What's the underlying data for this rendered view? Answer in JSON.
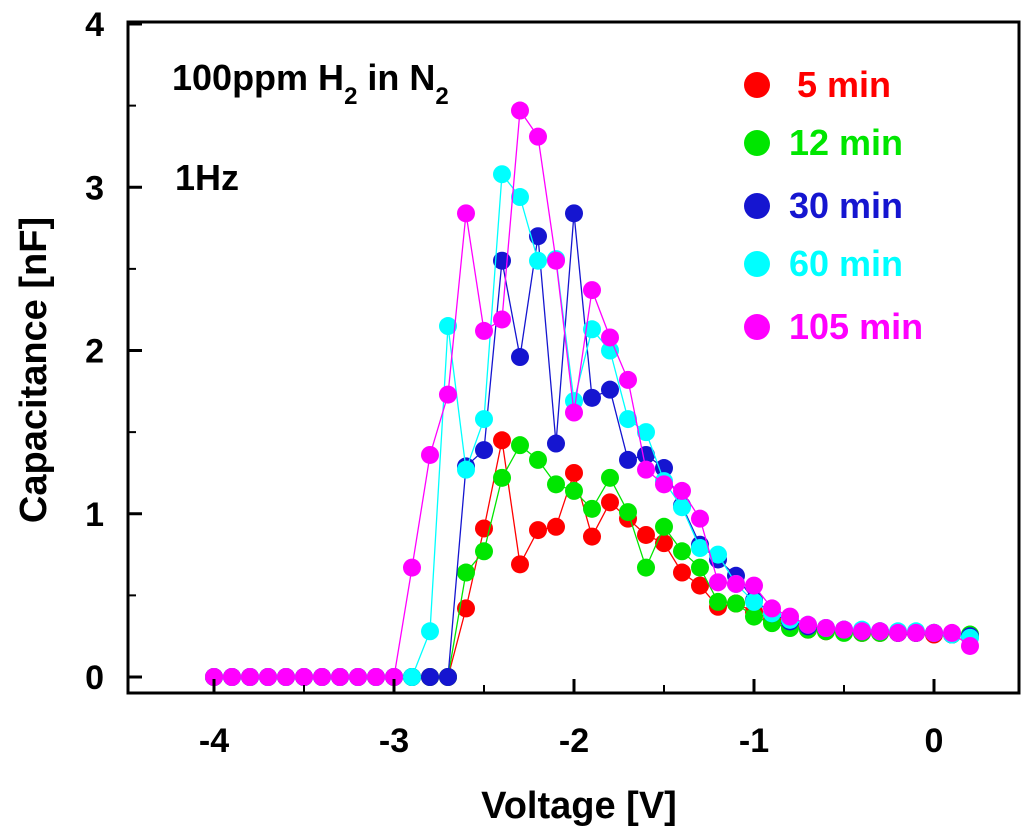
{
  "chart_data": {
    "type": "scatter",
    "xlabel": "Voltage [V]",
    "ylabel": "Capacitance [nF]",
    "xlim": [
      -4.5,
      0.5
    ],
    "ylim": [
      0,
      4
    ],
    "x_ticks": [
      -4,
      -3,
      -2,
      -1,
      0
    ],
    "x_tick_labels": [
      "-4",
      "-3",
      "-2",
      "-1",
      "0"
    ],
    "y_ticks": [
      0,
      1,
      2,
      3,
      4
    ],
    "y_tick_labels": [
      "0",
      "1",
      "2",
      "3",
      "4"
    ],
    "grid": false,
    "legend_position": "top-right",
    "annotations": {
      "gas_main": "100ppm H",
      "gas_sub1": "2",
      "gas_mid": " in N",
      "gas_sub2": "2",
      "freq": "1Hz"
    },
    "series": [
      {
        "name": "5 min",
        "color": "#ff0000",
        "points": [
          [
            -4.0,
            0.0
          ],
          [
            -3.9,
            0.0
          ],
          [
            -3.8,
            0.0
          ],
          [
            -3.7,
            0.0
          ],
          [
            -3.6,
            0.0
          ],
          [
            -3.5,
            0.0
          ],
          [
            -3.4,
            0.0
          ],
          [
            -3.3,
            0.0
          ],
          [
            -3.2,
            0.0
          ],
          [
            -3.1,
            0.0
          ],
          [
            -3.0,
            0.0
          ],
          [
            -2.9,
            0.0
          ],
          [
            -2.8,
            0.0
          ],
          [
            -2.7,
            0.0
          ],
          [
            -2.6,
            0.42
          ],
          [
            -2.5,
            0.91
          ],
          [
            -2.4,
            1.45
          ],
          [
            -2.3,
            0.69
          ],
          [
            -2.2,
            0.9
          ],
          [
            -2.1,
            0.92
          ],
          [
            -2.0,
            1.25
          ],
          [
            -1.9,
            0.86
          ],
          [
            -1.8,
            1.07
          ],
          [
            -1.7,
            0.97
          ],
          [
            -1.6,
            0.87
          ],
          [
            -1.5,
            0.82
          ],
          [
            -1.4,
            0.64
          ],
          [
            -1.3,
            0.56
          ],
          [
            -1.2,
            0.43
          ],
          [
            -1.1,
            0.45
          ],
          [
            -1.0,
            0.4
          ],
          [
            -0.9,
            0.35
          ],
          [
            -0.8,
            0.31
          ],
          [
            -0.7,
            0.29
          ],
          [
            -0.6,
            0.28
          ],
          [
            -0.5,
            0.28
          ],
          [
            -0.4,
            0.27
          ],
          [
            -0.3,
            0.27
          ],
          [
            -0.2,
            0.27
          ],
          [
            -0.1,
            0.27
          ],
          [
            0.0,
            0.26
          ],
          [
            0.1,
            0.26
          ],
          [
            0.2,
            0.25
          ]
        ]
      },
      {
        "name": "12 min",
        "color": "#00e600",
        "points": [
          [
            -4.0,
            0.0
          ],
          [
            -3.9,
            0.0
          ],
          [
            -3.8,
            0.0
          ],
          [
            -3.7,
            0.0
          ],
          [
            -3.6,
            0.0
          ],
          [
            -3.5,
            0.0
          ],
          [
            -3.4,
            0.0
          ],
          [
            -3.3,
            0.0
          ],
          [
            -3.2,
            0.0
          ],
          [
            -3.1,
            0.0
          ],
          [
            -3.0,
            0.0
          ],
          [
            -2.9,
            0.0
          ],
          [
            -2.8,
            0.0
          ],
          [
            -2.7,
            0.0
          ],
          [
            -2.6,
            0.64
          ],
          [
            -2.5,
            0.77
          ],
          [
            -2.4,
            1.22
          ],
          [
            -2.3,
            1.42
          ],
          [
            -2.2,
            1.33
          ],
          [
            -2.1,
            1.18
          ],
          [
            -2.0,
            1.14
          ],
          [
            -1.9,
            1.03
          ],
          [
            -1.8,
            1.22
          ],
          [
            -1.7,
            1.01
          ],
          [
            -1.6,
            0.67
          ],
          [
            -1.5,
            0.92
          ],
          [
            -1.4,
            0.77
          ],
          [
            -1.3,
            0.67
          ],
          [
            -1.2,
            0.46
          ],
          [
            -1.1,
            0.45
          ],
          [
            -1.0,
            0.37
          ],
          [
            -0.9,
            0.33
          ],
          [
            -0.8,
            0.3
          ],
          [
            -0.7,
            0.29
          ],
          [
            -0.6,
            0.28
          ],
          [
            -0.5,
            0.27
          ],
          [
            -0.4,
            0.27
          ],
          [
            -0.3,
            0.27
          ],
          [
            -0.2,
            0.27
          ],
          [
            -0.1,
            0.27
          ],
          [
            0.0,
            0.27
          ],
          [
            0.1,
            0.26
          ],
          [
            0.2,
            0.26
          ]
        ]
      },
      {
        "name": "30 min",
        "color": "#1515d0",
        "points": [
          [
            -4.0,
            0.0
          ],
          [
            -3.9,
            0.0
          ],
          [
            -3.8,
            0.0
          ],
          [
            -3.7,
            0.0
          ],
          [
            -3.6,
            0.0
          ],
          [
            -3.5,
            0.0
          ],
          [
            -3.4,
            0.0
          ],
          [
            -3.3,
            0.0
          ],
          [
            -3.2,
            0.0
          ],
          [
            -3.1,
            0.0
          ],
          [
            -3.0,
            0.0
          ],
          [
            -2.9,
            0.0
          ],
          [
            -2.8,
            0.0
          ],
          [
            -2.7,
            0.0
          ],
          [
            -2.6,
            1.29
          ],
          [
            -2.5,
            1.39
          ],
          [
            -2.4,
            2.55
          ],
          [
            -2.3,
            1.96
          ],
          [
            -2.2,
            2.7
          ],
          [
            -2.1,
            1.43
          ],
          [
            -2.0,
            2.84
          ],
          [
            -1.9,
            1.71
          ],
          [
            -1.8,
            1.76
          ],
          [
            -1.7,
            1.33
          ],
          [
            -1.6,
            1.36
          ],
          [
            -1.5,
            1.28
          ],
          [
            -1.4,
            1.05
          ],
          [
            -1.3,
            0.81
          ],
          [
            -1.2,
            0.72
          ],
          [
            -1.1,
            0.62
          ],
          [
            -1.0,
            0.47
          ],
          [
            -0.9,
            0.39
          ],
          [
            -0.8,
            0.34
          ],
          [
            -0.7,
            0.31
          ],
          [
            -0.6,
            0.3
          ],
          [
            -0.5,
            0.29
          ],
          [
            -0.4,
            0.28
          ],
          [
            -0.3,
            0.28
          ],
          [
            -0.2,
            0.27
          ],
          [
            -0.1,
            0.27
          ],
          [
            0.0,
            0.27
          ],
          [
            0.1,
            0.26
          ],
          [
            0.2,
            0.25
          ]
        ]
      },
      {
        "name": "60 min",
        "color": "#00ffff",
        "points": [
          [
            -4.0,
            0.0
          ],
          [
            -3.9,
            0.0
          ],
          [
            -3.8,
            0.0
          ],
          [
            -3.7,
            0.0
          ],
          [
            -3.6,
            0.0
          ],
          [
            -3.5,
            0.0
          ],
          [
            -3.4,
            0.0
          ],
          [
            -3.3,
            0.0
          ],
          [
            -3.2,
            0.0
          ],
          [
            -3.1,
            0.0
          ],
          [
            -3.0,
            0.0
          ],
          [
            -2.9,
            0.0
          ],
          [
            -2.8,
            0.28
          ],
          [
            -2.7,
            2.15
          ],
          [
            -2.6,
            1.27
          ],
          [
            -2.5,
            1.58
          ],
          [
            -2.4,
            3.08
          ],
          [
            -2.3,
            2.94
          ],
          [
            -2.2,
            2.55
          ],
          [
            -2.1,
            2.56
          ],
          [
            -2.0,
            1.69
          ],
          [
            -1.9,
            2.13
          ],
          [
            -1.8,
            2.0
          ],
          [
            -1.7,
            1.58
          ],
          [
            -1.6,
            1.5
          ],
          [
            -1.5,
            1.2
          ],
          [
            -1.4,
            1.04
          ],
          [
            -1.3,
            0.79
          ],
          [
            -1.2,
            0.75
          ],
          [
            -1.1,
            0.57
          ],
          [
            -1.0,
            0.46
          ],
          [
            -0.9,
            0.39
          ],
          [
            -0.8,
            0.35
          ],
          [
            -0.7,
            0.32
          ],
          [
            -0.6,
            0.3
          ],
          [
            -0.5,
            0.29
          ],
          [
            -0.4,
            0.29
          ],
          [
            -0.3,
            0.28
          ],
          [
            -0.2,
            0.28
          ],
          [
            -0.1,
            0.28
          ],
          [
            0.0,
            0.27
          ],
          [
            0.1,
            0.26
          ],
          [
            0.2,
            0.24
          ]
        ]
      },
      {
        "name": "105 min",
        "color": "#ff00ff",
        "points": [
          [
            -4.0,
            0.0
          ],
          [
            -3.9,
            0.0
          ],
          [
            -3.8,
            0.0
          ],
          [
            -3.7,
            0.0
          ],
          [
            -3.6,
            0.0
          ],
          [
            -3.5,
            0.0
          ],
          [
            -3.4,
            0.0
          ],
          [
            -3.3,
            0.0
          ],
          [
            -3.2,
            0.0
          ],
          [
            -3.1,
            0.0
          ],
          [
            -3.0,
            0.0
          ],
          [
            -2.9,
            0.67
          ],
          [
            -2.8,
            1.36
          ],
          [
            -2.7,
            1.73
          ],
          [
            -2.6,
            2.84
          ],
          [
            -2.5,
            2.12
          ],
          [
            -2.4,
            2.19
          ],
          [
            -2.3,
            3.47
          ],
          [
            -2.2,
            3.31
          ],
          [
            -2.1,
            2.55
          ],
          [
            -2.0,
            1.62
          ],
          [
            -1.9,
            2.37
          ],
          [
            -1.8,
            2.08
          ],
          [
            -1.7,
            1.82
          ],
          [
            -1.6,
            1.27
          ],
          [
            -1.5,
            1.18
          ],
          [
            -1.4,
            1.14
          ],
          [
            -1.3,
            0.97
          ],
          [
            -1.2,
            0.58
          ],
          [
            -1.1,
            0.57
          ],
          [
            -1.0,
            0.56
          ],
          [
            -0.9,
            0.42
          ],
          [
            -0.8,
            0.37
          ],
          [
            -0.7,
            0.32
          ],
          [
            -0.6,
            0.3
          ],
          [
            -0.5,
            0.29
          ],
          [
            -0.4,
            0.28
          ],
          [
            -0.3,
            0.28
          ],
          [
            -0.2,
            0.27
          ],
          [
            -0.1,
            0.27
          ],
          [
            0.0,
            0.27
          ],
          [
            0.1,
            0.27
          ],
          [
            0.2,
            0.19
          ]
        ]
      }
    ]
  }
}
